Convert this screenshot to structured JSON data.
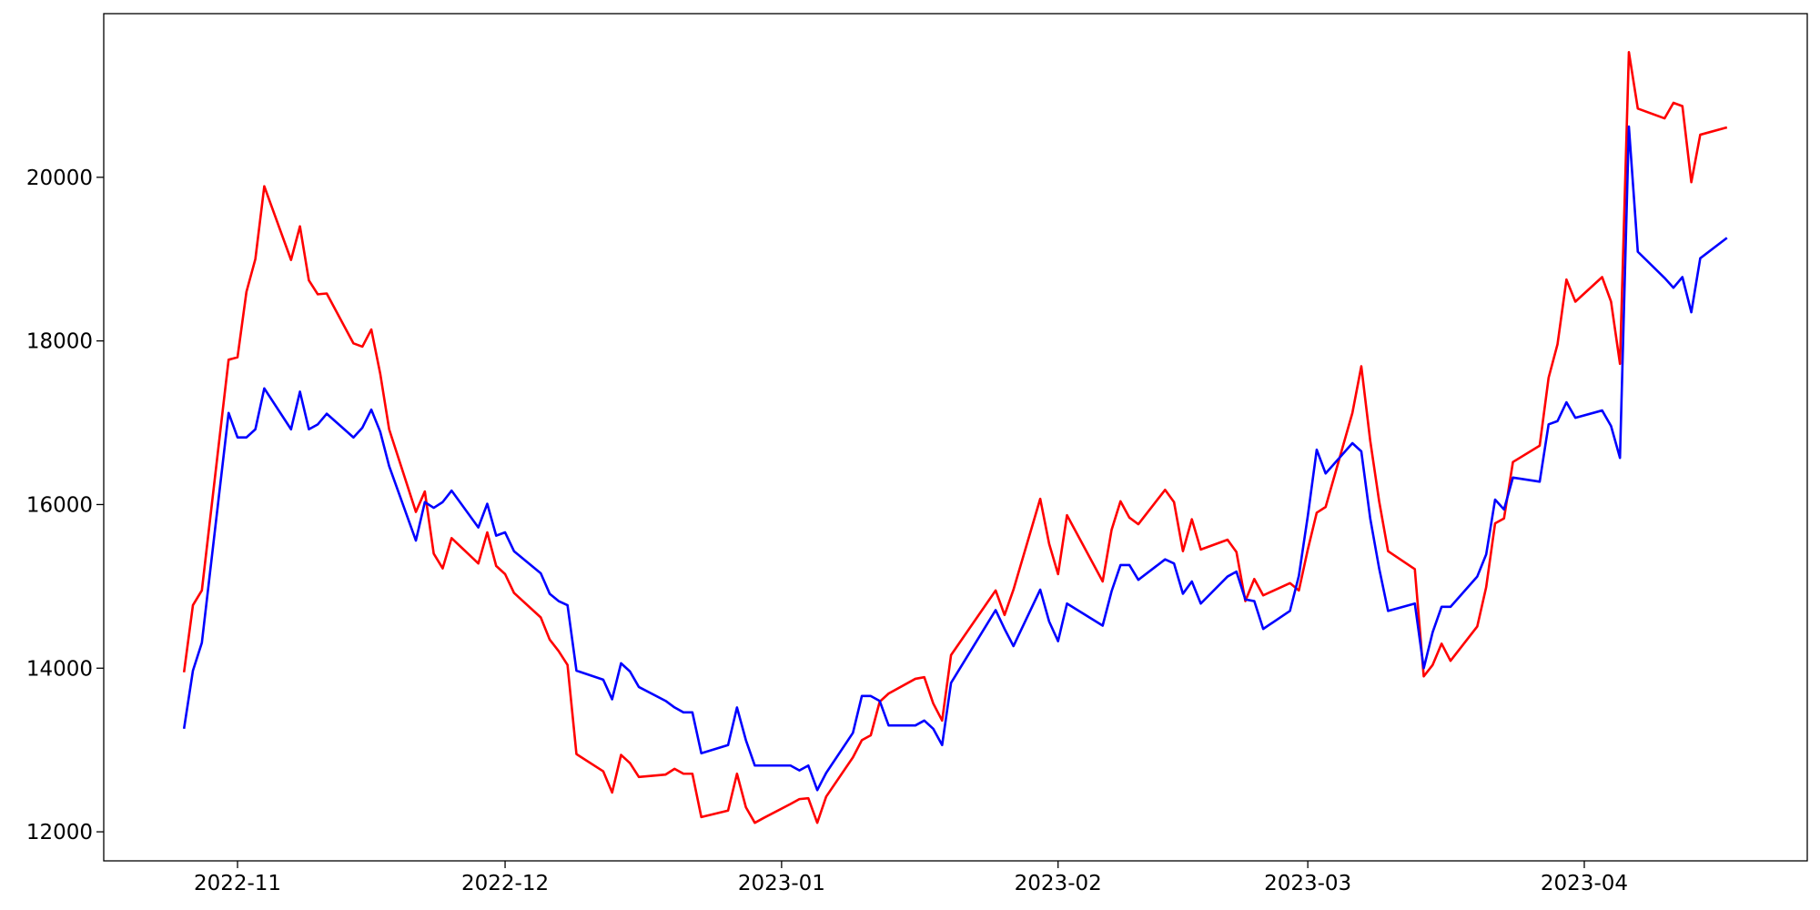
{
  "chart_data": {
    "type": "line",
    "x": [
      "2022-10-26",
      "2022-10-27",
      "2022-10-28",
      "2022-10-31",
      "2022-11-01",
      "2022-11-02",
      "2022-11-03",
      "2022-11-04",
      "2022-11-07",
      "2022-11-08",
      "2022-11-09",
      "2022-11-10",
      "2022-11-11",
      "2022-11-14",
      "2022-11-15",
      "2022-11-16",
      "2022-11-17",
      "2022-11-18",
      "2022-11-21",
      "2022-11-22",
      "2022-11-23",
      "2022-11-24",
      "2022-11-25",
      "2022-11-28",
      "2022-11-29",
      "2022-11-30",
      "2022-12-01",
      "2022-12-02",
      "2022-12-05",
      "2022-12-06",
      "2022-12-07",
      "2022-12-08",
      "2022-12-09",
      "2022-12-12",
      "2022-12-13",
      "2022-12-14",
      "2022-12-15",
      "2022-12-16",
      "2022-12-19",
      "2022-12-20",
      "2022-12-21",
      "2022-12-22",
      "2022-12-23",
      "2022-12-26",
      "2022-12-27",
      "2022-12-28",
      "2022-12-29",
      "2022-12-30",
      "2023-01-02",
      "2023-01-03",
      "2023-01-04",
      "2023-01-05",
      "2023-01-06",
      "2023-01-09",
      "2023-01-10",
      "2023-01-11",
      "2023-01-12",
      "2023-01-13",
      "2023-01-16",
      "2023-01-17",
      "2023-01-18",
      "2023-01-19",
      "2023-01-20",
      "2023-01-25",
      "2023-01-26",
      "2023-01-27",
      "2023-01-30",
      "2023-01-31",
      "2023-02-01",
      "2023-02-02",
      "2023-02-06",
      "2023-02-07",
      "2023-02-08",
      "2023-02-09",
      "2023-02-10",
      "2023-02-13",
      "2023-02-14",
      "2023-02-15",
      "2023-02-16",
      "2023-02-17",
      "2023-02-20",
      "2023-02-21",
      "2023-02-22",
      "2023-02-23",
      "2023-02-24",
      "2023-02-27",
      "2023-02-28",
      "2023-03-01",
      "2023-03-02",
      "2023-03-03",
      "2023-03-06",
      "2023-03-07",
      "2023-03-08",
      "2023-03-09",
      "2023-03-10",
      "2023-03-13",
      "2023-03-14",
      "2023-03-15",
      "2023-03-16",
      "2023-03-17",
      "2023-03-20",
      "2023-03-21",
      "2023-03-22",
      "2023-03-23",
      "2023-03-24",
      "2023-03-27",
      "2023-03-28",
      "2023-03-29",
      "2023-03-30",
      "2023-03-31",
      "2023-04-03",
      "2023-04-04",
      "2023-04-05",
      "2023-04-06",
      "2023-04-07",
      "2023-04-10",
      "2023-04-11",
      "2023-04-12",
      "2023-04-13",
      "2023-04-14",
      "2023-04-17"
    ],
    "series": [
      {
        "color": "#ff0000",
        "values": [
          13950,
          14770,
          14950,
          17770,
          17800,
          18600,
          19000,
          19890,
          18990,
          19400,
          18740,
          18570,
          18580,
          17970,
          17930,
          18140,
          17600,
          16920,
          15910,
          16160,
          15400,
          15220,
          15590,
          15280,
          15660,
          15250,
          15150,
          14920,
          14620,
          14350,
          14210,
          14040,
          12950,
          12740,
          12480,
          12940,
          12840,
          12670,
          12700,
          12770,
          12710,
          12710,
          12180,
          12260,
          12710,
          12300,
          12110,
          12170,
          12340,
          12400,
          12410,
          12110,
          12430,
          12910,
          13120,
          13180,
          13590,
          13690,
          13870,
          13890,
          13570,
          13360,
          14160,
          14950,
          14650,
          14960,
          16070,
          15520,
          15150,
          15870,
          15060,
          15690,
          16040,
          15840,
          15760,
          16180,
          16030,
          15430,
          15820,
          15450,
          15570,
          15420,
          14820,
          15090,
          14890,
          15040,
          14950,
          15450,
          15900,
          15970,
          17120,
          17690,
          16780,
          16040,
          15430,
          15210,
          13900,
          14040,
          14300,
          14090,
          14510,
          14990,
          15770,
          15830,
          16520,
          16720,
          17550,
          17960,
          18750,
          18480,
          18780,
          18480,
          17720,
          21530,
          20840,
          20720,
          20910,
          20870,
          19940,
          20520,
          20610
        ]
      },
      {
        "color": "#0000ff",
        "values": [
          13260,
          13970,
          14310,
          17120,
          16820,
          16820,
          16920,
          17420,
          16920,
          17380,
          16920,
          16980,
          17110,
          16820,
          16940,
          17160,
          16890,
          16470,
          15560,
          16030,
          15960,
          16030,
          16170,
          15720,
          16010,
          15620,
          15660,
          15430,
          15160,
          14910,
          14820,
          14770,
          13970,
          13860,
          13620,
          14060,
          13960,
          13770,
          13600,
          13520,
          13460,
          13460,
          12960,
          13060,
          13520,
          13120,
          12810,
          12810,
          12810,
          12750,
          12810,
          12510,
          12720,
          13210,
          13660,
          13660,
          13600,
          13300,
          13300,
          13360,
          13260,
          13060,
          13820,
          14710,
          14480,
          14270,
          14960,
          14570,
          14330,
          14790,
          14520,
          14940,
          15260,
          15260,
          15080,
          15330,
          15280,
          14910,
          15060,
          14790,
          15120,
          15180,
          14840,
          14820,
          14480,
          14700,
          15130,
          15860,
          16670,
          16380,
          16750,
          16650,
          15830,
          15220,
          14700,
          14790,
          14000,
          14440,
          14750,
          14750,
          15120,
          15390,
          16060,
          15940,
          16330,
          16280,
          16980,
          17020,
          17250,
          17060,
          17150,
          16960,
          16570,
          20620,
          19090,
          18770,
          18650,
          18780,
          18350,
          19010,
          19260
        ]
      }
    ],
    "xlim": [
      "2022-10-17",
      "2023-04-26"
    ],
    "xticks": [
      {
        "value": "2022-11-01",
        "label": "2022-11"
      },
      {
        "value": "2022-12-01",
        "label": "2022-12"
      },
      {
        "value": "2023-01-01",
        "label": "2023-01"
      },
      {
        "value": "2023-02-01",
        "label": "2023-02"
      },
      {
        "value": "2023-03-01",
        "label": "2023-03"
      },
      {
        "value": "2023-04-01",
        "label": "2023-04"
      }
    ],
    "ylim": [
      11645,
      22000
    ],
    "yticks": [
      12000,
      14000,
      16000,
      18000,
      20000
    ]
  }
}
